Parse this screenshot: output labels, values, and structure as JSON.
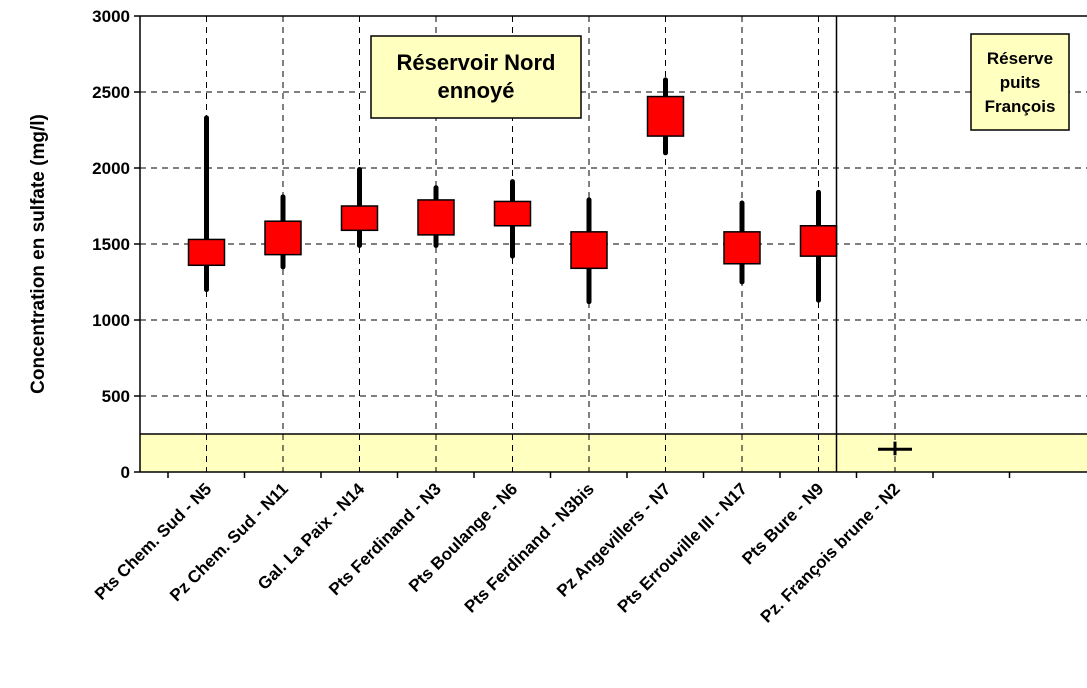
{
  "chart_data": {
    "type": "box",
    "categories": [
      "Pts Chem. Sud - N5",
      "Pz Chem. Sud - N11",
      "Gal. La Paix - N14",
      "Pts Ferdinand - N3",
      "Pts Boulange - N6",
      "Pts Ferdinand - N3bis",
      "Pz Angevillers - N7",
      "Pts Errouville III - N17",
      "Pts Bure - N9",
      "Pz. François brune - N2"
    ],
    "series": [
      {
        "min": [
          1200,
          1350,
          1490,
          1490,
          1420,
          1120,
          2100,
          1250,
          1130,
          110
        ],
        "q1": [
          1360,
          1430,
          1590,
          1560,
          1620,
          1340,
          2210,
          1370,
          1420,
          150
        ],
        "q3": [
          1530,
          1650,
          1750,
          1790,
          1780,
          1580,
          2470,
          1580,
          1620,
          150
        ],
        "max": [
          2330,
          1810,
          1990,
          1870,
          1910,
          1790,
          2580,
          1770,
          1840,
          200
        ]
      }
    ],
    "ylabel": "Concentration en sulfate (mg/l)",
    "ylim": [
      0,
      3000
    ],
    "yticks": [
      "0",
      "500",
      "1000",
      "1500",
      "2000",
      "2500",
      "3000"
    ],
    "grid": true,
    "shaded_band": [
      0,
      250
    ],
    "annotations": [
      {
        "lines": [
          "Réservoir Nord",
          "ennoyé"
        ]
      },
      {
        "lines": [
          "Réserve",
          "puits",
          "François"
        ]
      }
    ],
    "colors": {
      "box": "#ff0000",
      "whisker": "#000000",
      "highlight": "#ffffc0",
      "last_marker": "#000000"
    }
  }
}
